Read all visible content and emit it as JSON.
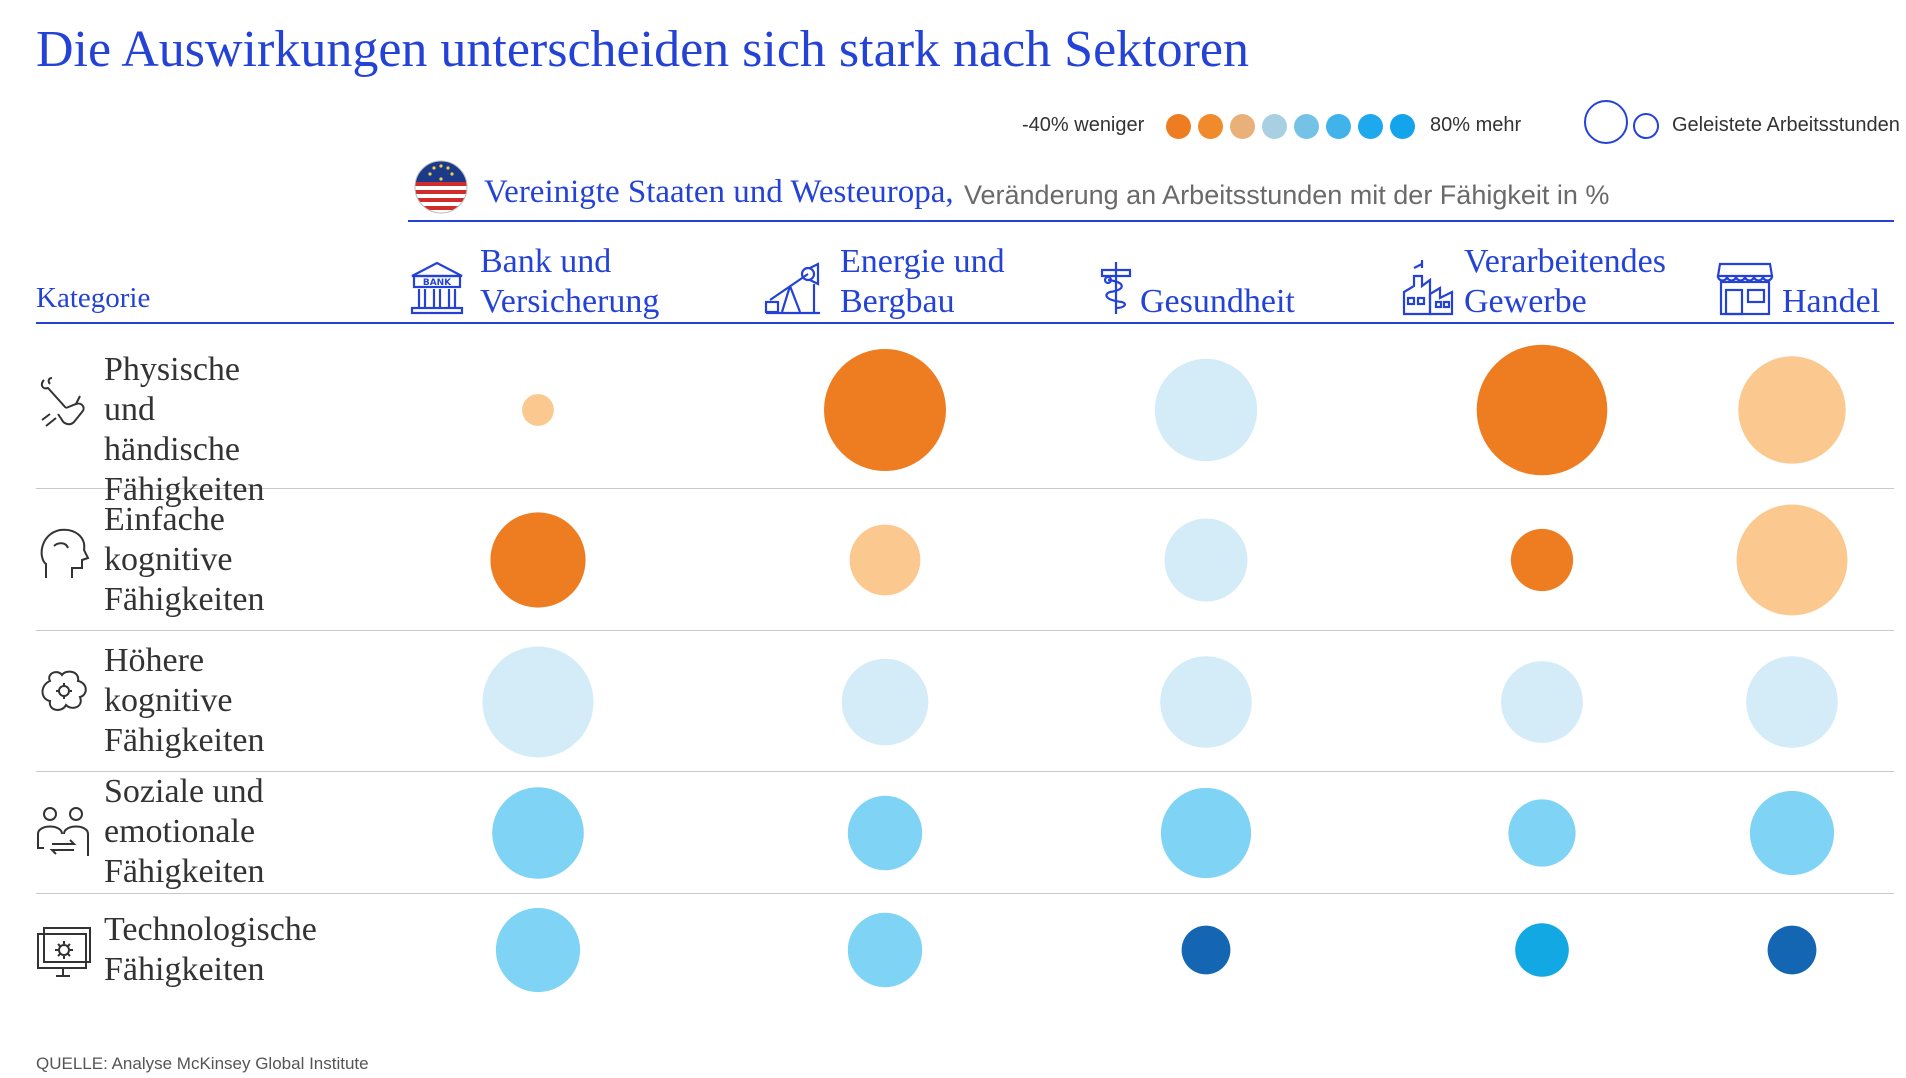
{
  "title": "Die Auswirkungen unterscheiden sich stark nach Sektoren",
  "legend": {
    "low_label": "-40% weniger",
    "high_label": "80% mehr",
    "size_label": "Geleistete Arbeitsstunden",
    "scale_colors": [
      "#ee7d22",
      "#f08a2a",
      "#e9b07a",
      "#a9cfe2",
      "#74c3e6",
      "#3fb3ea",
      "#1ea8ee",
      "#13a4ec"
    ]
  },
  "region": {
    "name": "Vereinigte Staaten und Westeuropa,",
    "description": "Veränderung an Arbeitsstunden mit der Fähigkeit in %",
    "flag_icon": "us-eu-flag-icon"
  },
  "category_header": "Kategorie",
  "sectors": [
    {
      "label": "Bank und\nVersicherung",
      "icon": "bank-icon"
    },
    {
      "label": "Energie und\nBergbau",
      "icon": "oil-pump-icon"
    },
    {
      "label": "Gesundheit",
      "icon": "caduceus-icon"
    },
    {
      "label": "Verarbeitendes\nGewerbe",
      "icon": "factory-icon"
    },
    {
      "label": "Handel",
      "icon": "store-icon"
    }
  ],
  "categories": [
    {
      "label": "Physische und\nhändische\nFähigkeiten",
      "icon": "tools-hand-icon"
    },
    {
      "label": "Einfache\nkognitive\nFähigkeiten",
      "icon": "head-icon"
    },
    {
      "label": "Höhere\nkognitive\nFähigkeiten",
      "icon": "brain-icon"
    },
    {
      "label": "Soziale und\nemotionale\nFähigkeiten",
      "icon": "people-exchange-icon"
    },
    {
      "label": "Technologische\nFähigkeiten",
      "icon": "computer-gear-icon"
    }
  ],
  "source": "QUELLE: Analyse McKinsey Global Institute",
  "chart_data": {
    "type": "bubble-matrix",
    "size_encodes": "Geleistete Arbeitsstunden",
    "color_encodes": "Veränderung an Arbeitsstunden mit der Fähigkeit in %",
    "color_range": [
      -40,
      80
    ],
    "rows": [
      "Physische und händische Fähigkeiten",
      "Einfache kognitive Fähigkeiten",
      "Höhere kognitive Fähigkeiten",
      "Soziale und emotionale Fähigkeiten",
      "Technologische Fähigkeiten"
    ],
    "columns": [
      "Bank und Versicherung",
      "Energie und Bergbau",
      "Gesundheit",
      "Verarbeitendes Gewerbe",
      "Handel"
    ],
    "cells": [
      [
        {
          "size": 0.26,
          "color": "#fbc98f"
        },
        {
          "size": 1.0,
          "color": "#ee7d22"
        },
        {
          "size": 0.84,
          "color": "#d4ecf7"
        },
        {
          "size": 1.07,
          "color": "#ee7d22"
        },
        {
          "size": 0.88,
          "color": "#fbc98f"
        }
      ],
      [
        {
          "size": 0.78,
          "color": "#ee7d22"
        },
        {
          "size": 0.58,
          "color": "#fbc98f"
        },
        {
          "size": 0.68,
          "color": "#d4ecf7"
        },
        {
          "size": 0.51,
          "color": "#ee7d22"
        },
        {
          "size": 0.91,
          "color": "#fbc98f"
        }
      ],
      [
        {
          "size": 0.91,
          "color": "#d4ecf7"
        },
        {
          "size": 0.71,
          "color": "#d4ecf7"
        },
        {
          "size": 0.75,
          "color": "#d4ecf7"
        },
        {
          "size": 0.67,
          "color": "#d4ecf7"
        },
        {
          "size": 0.75,
          "color": "#d4ecf7"
        }
      ],
      [
        {
          "size": 0.75,
          "color": "#7fd3f4"
        },
        {
          "size": 0.61,
          "color": "#7fd3f4"
        },
        {
          "size": 0.74,
          "color": "#7fd3f4"
        },
        {
          "size": 0.55,
          "color": "#7fd3f4"
        },
        {
          "size": 0.69,
          "color": "#7fd3f4"
        }
      ],
      [
        {
          "size": 0.69,
          "color": "#7fd3f4"
        },
        {
          "size": 0.61,
          "color": "#7fd3f4"
        },
        {
          "size": 0.4,
          "color": "#1466b3"
        },
        {
          "size": 0.44,
          "color": "#12a8e4"
        },
        {
          "size": 0.4,
          "color": "#1466b3"
        }
      ]
    ]
  }
}
